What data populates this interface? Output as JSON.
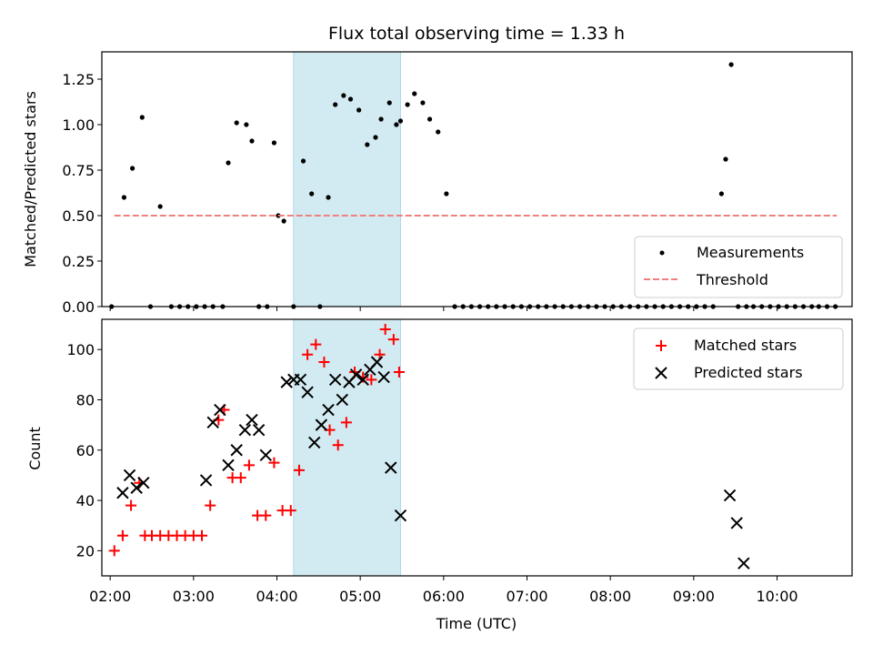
{
  "chart_data": [
    {
      "type": "scatter",
      "title": "Flux total observing time = 1.33 h",
      "ylabel": "Matched/Predicted stars",
      "xlabel": "",
      "ylim": [
        0,
        1.4
      ],
      "xlim": [
        "01:54",
        "10:54"
      ],
      "yticks": [
        "0.00",
        "0.25",
        "0.50",
        "0.75",
        "1.00",
        "1.25"
      ],
      "shaded_span": {
        "start": "04:12",
        "end": "05:29",
        "color": "#add8e6"
      },
      "legend": {
        "position": "lower-right",
        "entries": [
          "Measurements",
          "Threshold"
        ]
      },
      "series": [
        {
          "name": "Measurements",
          "marker": "dot",
          "color": "#000000",
          "x": [
            "02:01",
            "02:10",
            "02:16",
            "02:23",
            "02:29",
            "02:36",
            "02:44",
            "02:50",
            "02:56",
            "03:02",
            "03:08",
            "03:14",
            "03:21",
            "03:25",
            "03:31",
            "03:38",
            "03:42",
            "03:47",
            "03:53",
            "03:58",
            "04:01",
            "04:05",
            "04:12",
            "04:19",
            "04:25",
            "04:31",
            "04:37",
            "04:42",
            "04:48",
            "04:53",
            "04:59",
            "05:05",
            "05:11",
            "05:15",
            "05:21",
            "05:26",
            "05:29",
            "05:34",
            "05:39",
            "05:45",
            "05:50",
            "05:56",
            "06:02",
            "06:08",
            "06:14",
            "06:20",
            "06:26",
            "06:32",
            "06:38",
            "06:44",
            "06:50",
            "06:56",
            "07:02",
            "07:08",
            "07:14",
            "07:20",
            "07:26",
            "07:32",
            "07:38",
            "07:44",
            "07:50",
            "07:56",
            "08:02",
            "08:08",
            "08:14",
            "08:20",
            "08:26",
            "08:32",
            "08:38",
            "08:44",
            "08:50",
            "08:56",
            "09:02",
            "09:08",
            "09:14",
            "09:20",
            "09:23",
            "09:27",
            "09:32",
            "09:38",
            "09:43",
            "09:49",
            "09:55",
            "10:01",
            "10:07",
            "10:13",
            "10:19",
            "10:25",
            "10:30",
            "10:36",
            "10:42"
          ],
          "y": [
            0,
            0.6,
            0.76,
            1.04,
            0,
            0.55,
            0,
            0,
            0,
            0,
            0,
            0,
            0,
            0.79,
            1.01,
            1.0,
            0.91,
            0,
            0,
            0.9,
            0.5,
            0.47,
            0,
            0.8,
            0.62,
            0,
            0.6,
            1.11,
            1.16,
            1.14,
            1.08,
            0.89,
            0.93,
            1.03,
            1.12,
            1.0,
            1.02,
            1.11,
            1.17,
            1.12,
            1.03,
            0.96,
            0.62,
            0,
            0,
            0,
            0,
            0,
            0,
            0,
            0,
            0,
            0,
            0,
            0,
            0,
            0,
            0,
            0,
            0,
            0,
            0,
            0,
            0,
            0,
            0,
            0,
            0,
            0,
            0,
            0,
            0,
            0,
            0,
            0,
            0.62,
            0.81,
            1.33,
            0,
            0,
            0,
            0,
            0,
            0,
            0,
            0,
            0,
            0,
            0,
            0,
            0
          ]
        },
        {
          "name": "Threshold",
          "marker": "dashed-line",
          "color": "#f08080",
          "x": [
            "02:03",
            "10:43"
          ],
          "y": [
            0.5,
            0.5
          ]
        }
      ]
    },
    {
      "type": "scatter",
      "title": "",
      "ylabel": "Count",
      "xlabel": "Time (UTC)",
      "ylim": [
        10,
        112
      ],
      "xlim": [
        "01:54",
        "10:54"
      ],
      "yticks": [
        "20",
        "40",
        "60",
        "80",
        "100"
      ],
      "xticks": [
        "02:00",
        "03:00",
        "04:00",
        "05:00",
        "06:00",
        "07:00",
        "08:00",
        "09:00",
        "10:00"
      ],
      "shaded_span": {
        "start": "04:12",
        "end": "05:29",
        "color": "#add8e6"
      },
      "legend": {
        "position": "top-right",
        "entries": [
          "Matched stars",
          "Predicted stars"
        ]
      },
      "series": [
        {
          "name": "Matched stars",
          "marker": "plus",
          "color": "#ff0000",
          "x": [
            "02:03",
            "02:09",
            "02:15",
            "02:21",
            "02:25",
            "02:30",
            "02:36",
            "02:42",
            "02:48",
            "02:54",
            "03:00",
            "03:06",
            "03:12",
            "03:18",
            "03:22",
            "03:28",
            "03:34",
            "03:40",
            "03:46",
            "03:52",
            "03:58",
            "04:04",
            "04:10",
            "04:16",
            "04:22",
            "04:28",
            "04:34",
            "04:38",
            "04:44",
            "04:50",
            "04:56",
            "05:02",
            "05:08",
            "05:14",
            "05:18",
            "05:24",
            "05:28"
          ],
          "y": [
            20,
            26,
            38,
            47,
            26,
            26,
            26,
            26,
            26,
            26,
            26,
            26,
            38,
            72,
            76,
            49,
            49,
            54,
            34,
            34,
            55,
            36,
            36,
            52,
            98,
            102,
            95,
            68,
            62,
            71,
            91,
            89,
            88,
            98,
            108,
            104,
            91
          ]
        },
        {
          "name": "Predicted stars",
          "marker": "x",
          "color": "#000000",
          "x": [
            "02:09",
            "02:14",
            "02:19",
            "02:24",
            "03:09",
            "03:14",
            "03:19",
            "03:25",
            "03:31",
            "03:37",
            "03:42",
            "03:47",
            "03:52",
            "04:07",
            "04:12",
            "04:17",
            "04:22",
            "04:27",
            "04:32",
            "04:37",
            "04:42",
            "04:47",
            "04:52",
            "04:57",
            "05:02",
            "05:07",
            "05:12",
            "05:17",
            "05:22",
            "05:29",
            "09:26",
            "09:31",
            "09:36"
          ],
          "y": [
            43,
            50,
            45,
            47,
            48,
            71,
            76,
            54,
            60,
            68,
            72,
            68,
            58,
            87,
            88,
            88,
            83,
            63,
            70,
            76,
            88,
            80,
            87,
            90,
            88,
            92,
            95,
            89,
            53,
            34,
            42,
            31,
            15
          ]
        }
      ]
    }
  ]
}
